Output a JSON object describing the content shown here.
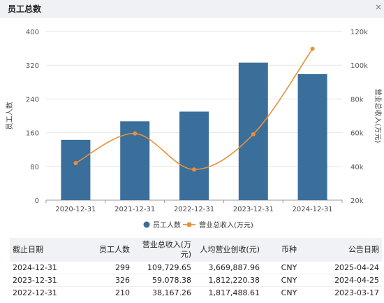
{
  "panel": {
    "title": "员工总数",
    "close_label": "×"
  },
  "chart_data": {
    "type": "bar",
    "categories": [
      "2020-12-31",
      "2021-12-31",
      "2022-12-31",
      "2023-12-31",
      "2024-12-31"
    ],
    "series": [
      {
        "name": "员工人数",
        "type": "bar",
        "axis": "left",
        "color": "#3a6f9b",
        "values": [
          143,
          187,
          210,
          326,
          299
        ]
      },
      {
        "name": "营业总收入(万元)",
        "type": "line",
        "axis": "right",
        "color": "#e8913a",
        "values": [
          42000,
          59500,
          38167.26,
          59078.38,
          109729.65
        ]
      }
    ],
    "ylabel": "员工人数",
    "ylabel_right": "营业总收入(万元)",
    "ylim": [
      0,
      400
    ],
    "ylim_right": [
      20000,
      120000
    ],
    "yticks": [
      "0",
      "80",
      "160",
      "240",
      "320",
      "400"
    ],
    "yticks_right": [
      "20k",
      "40k",
      "60k",
      "80k",
      "100k",
      "120k"
    ],
    "grid": true,
    "legend_position": "bottom-center"
  },
  "table": {
    "headers": [
      "截止日期",
      "员工人数",
      "营业总收入(万元)",
      "人均营业创收(元)",
      "币种",
      "公告日期"
    ],
    "rows": [
      [
        "2024-12-31",
        "299",
        "109,729.65",
        "3,669,887.96",
        "CNY",
        "2025-04-24"
      ],
      [
        "2023-12-31",
        "326",
        "59,078.38",
        "1,812,220.38",
        "CNY",
        "2024-04-25"
      ],
      [
        "2022-12-31",
        "210",
        "38,167.26",
        "1,817,488.61",
        "CNY",
        "2023-03-17"
      ]
    ]
  }
}
